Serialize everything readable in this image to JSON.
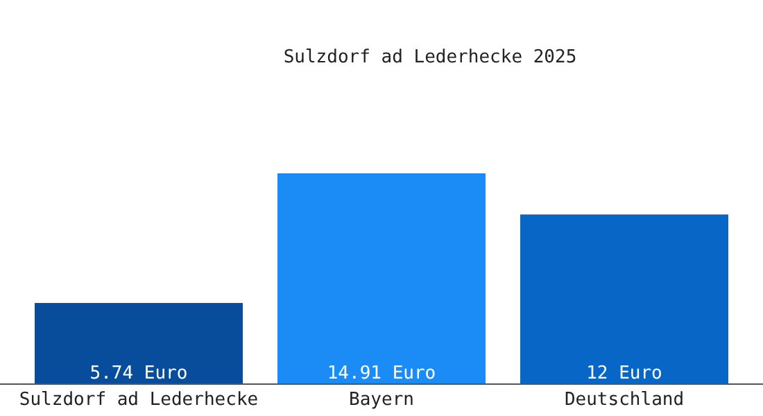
{
  "chart_data": {
    "type": "bar",
    "title": "Sulzdorf ad Lederhecke 2025",
    "categories": [
      "Sulzdorf ad Lederhecke",
      "Bayern",
      "Deutschland"
    ],
    "values": [
      5.74,
      14.91,
      12
    ],
    "colors": [
      "#084d9c",
      "#1b8cf5",
      "#0866c6"
    ],
    "value_labels": [
      "5.74 Euro",
      "14.91 Euro",
      "12 Euro"
    ]
  }
}
